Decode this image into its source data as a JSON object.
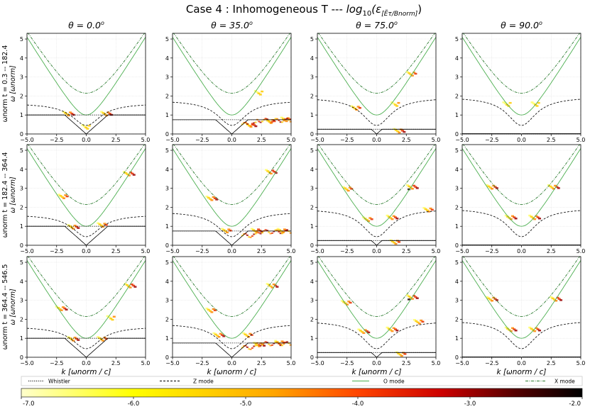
{
  "figure": {
    "title": "Case 4 : Inhomogeneous T --- log₁₀(ε[Eτ/Bnorm])",
    "title_main": "Case 4 : Inhomogeneous T --- ",
    "title_log": "log",
    "title_sub10": "10",
    "title_arg": "(ε",
    "title_arg_sub": "[Ẽτ/Bnorm]",
    "title_close": ")"
  },
  "columns": [
    {
      "label": "θ = 0.0°",
      "theta_text": "θ = 0.0",
      "deg": "o"
    },
    {
      "label": "θ = 35.0°",
      "theta_text": "θ = 35.0",
      "deg": "o"
    },
    {
      "label": "θ = 75.0°",
      "theta_text": "θ = 75.0",
      "deg": "o"
    },
    {
      "label": "θ = 90.0°",
      "theta_text": "θ = 90.0",
      "deg": "o"
    }
  ],
  "rows": [
    {
      "time_label": "ωnorm t = 0.3 -- 182.4"
    },
    {
      "time_label": "ωnorm t = 182.4 -- 364.4"
    },
    {
      "time_label": "ωnorm t = 364.4 -- 546.5"
    }
  ],
  "axes": {
    "xlabel": "k [ωnorm / c]",
    "ylabel": "ω [ωnorm]",
    "x_ticks": [
      "−5.0",
      "−2.5",
      "0.0",
      "2.5",
      "5.0"
    ],
    "y_ticks": [
      "0",
      "1",
      "2",
      "3",
      "4",
      "5"
    ]
  },
  "legend": {
    "items": [
      {
        "label": "Whistler",
        "color": "#000000",
        "style": "dotted"
      },
      {
        "label": "Z mode",
        "color": "#000000",
        "style": "dashed"
      },
      {
        "label": "O mode",
        "color": "#4caf50",
        "style": "solid"
      },
      {
        "label": "X mode",
        "color": "#2e7d32",
        "style": "dashdot"
      }
    ]
  },
  "colorbar": {
    "ticks": [
      "-7.0",
      "-6.0",
      "-5.0",
      "-4.0",
      "-3.0",
      "-2.0"
    ],
    "colors": [
      "#ffffcc",
      "#ffff00",
      "#ffa500",
      "#ff4500",
      "#cc0000",
      "#550000",
      "#000000"
    ]
  },
  "chart_data": {
    "type": "heatmap",
    "title": "Case 4 : Inhomogeneous T --- log10(eps[E_tau/B_norm])",
    "xlabel": "k [omega_norm / c]",
    "ylabel": "omega [omega_norm]",
    "xlim": [
      -5.0,
      5.0
    ],
    "ylim": [
      0,
      5.3
    ],
    "color_range": [
      -7.0,
      -2.0
    ],
    "angles_deg": [
      0.0,
      35.0,
      75.0,
      90.0
    ],
    "time_windows": [
      "0.3 -- 182.4",
      "182.4 -- 364.4",
      "364.4 -- 546.5"
    ],
    "dispersion": {
      "O_mode": {
        "form": "omega = sqrt(1 + k^2)",
        "values_at_k": {
          "0": 1.0,
          "2.5": 2.69,
          "5": 5.1
        }
      },
      "X_mode_upper": {
        "form": "upper branch",
        "values_at_k": {
          "0": 2.15,
          "2.5": 3.25,
          "5": 5.2
        }
      },
      "Z_mode": {
        "values_at_k": {
          "0": 0.45,
          "2.5": 1.25,
          "5": 1.6
        }
      },
      "Whistler_theta0": {
        "value": 1.0
      }
    },
    "series": [
      {
        "name": "Whistler",
        "style": "dotted black"
      },
      {
        "name": "Z mode",
        "style": "dashed black"
      },
      {
        "name": "O mode",
        "style": "solid green"
      },
      {
        "name": "X mode",
        "style": "dashdot green"
      }
    ]
  }
}
